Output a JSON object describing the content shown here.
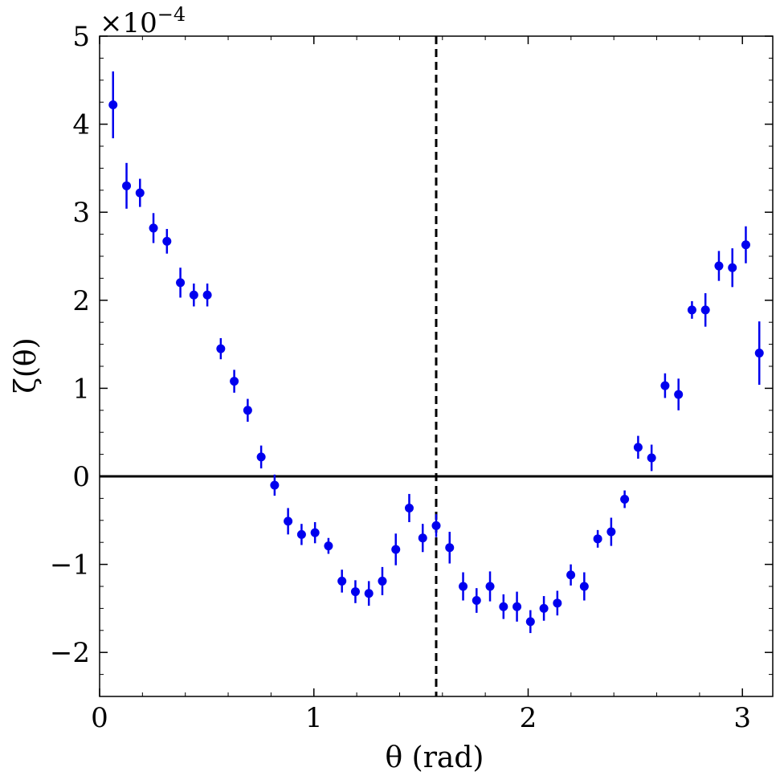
{
  "chart_data": {
    "type": "scatter",
    "xlabel": "θ (rad)",
    "ylabel": "ζ(θ)",
    "y_multiplier_label": "×10",
    "y_multiplier_exponent": "−4",
    "xlim": [
      0,
      3.1416
    ],
    "ylim": [
      -2.5,
      5.0
    ],
    "x_ticks": [
      0,
      1,
      2,
      3
    ],
    "x_tick_labels": [
      "0",
      "1",
      "2",
      "3"
    ],
    "y_ticks": [
      -2,
      -1,
      0,
      1,
      2,
      3,
      4,
      5
    ],
    "y_tick_labels": [
      "−2",
      "−1",
      "0",
      "1",
      "2",
      "3",
      "4",
      "5"
    ],
    "y_units": "×1e-4",
    "grid": false,
    "reference_lines": {
      "horizontal_y": 0,
      "vertical_x_dashed": 1.5708
    },
    "series": [
      {
        "color": "#0000ee",
        "x": [
          0.0628,
          0.1257,
          0.1885,
          0.2513,
          0.3142,
          0.377,
          0.4398,
          0.5027,
          0.5655,
          0.6283,
          0.6912,
          0.754,
          0.8168,
          0.8796,
          0.9425,
          1.0053,
          1.0681,
          1.131,
          1.1938,
          1.2566,
          1.3195,
          1.3823,
          1.4451,
          1.508,
          1.5708,
          1.6336,
          1.6965,
          1.7593,
          1.8221,
          1.885,
          1.9478,
          2.0106,
          2.0735,
          2.1363,
          2.1991,
          2.2619,
          2.3248,
          2.3876,
          2.4504,
          2.5133,
          2.5761,
          2.6389,
          2.7018,
          2.7646,
          2.8274,
          2.8903,
          2.9531,
          3.0159,
          3.0788
        ],
        "y": [
          4.22,
          3.3,
          3.22,
          2.82,
          2.67,
          2.2,
          2.06,
          2.06,
          1.45,
          1.08,
          0.75,
          0.22,
          -0.1,
          -0.51,
          -0.66,
          -0.64,
          -0.79,
          -1.19,
          -1.31,
          -1.33,
          -1.19,
          -0.83,
          -0.36,
          -0.7,
          -0.56,
          -0.81,
          -1.25,
          -1.41,
          -1.25,
          -1.48,
          -1.48,
          -1.65,
          -1.5,
          -1.44,
          -1.12,
          -1.25,
          -0.71,
          -0.63,
          -0.26,
          0.33,
          0.21,
          1.03,
          0.93,
          1.89,
          1.89,
          2.39,
          2.37,
          2.63,
          1.4
        ],
        "yerr": [
          0.38,
          0.26,
          0.16,
          0.17,
          0.14,
          0.17,
          0.13,
          0.13,
          0.12,
          0.13,
          0.13,
          0.13,
          0.12,
          0.15,
          0.12,
          0.12,
          0.09,
          0.13,
          0.13,
          0.14,
          0.16,
          0.18,
          0.16,
          0.16,
          0.13,
          0.18,
          0.16,
          0.14,
          0.17,
          0.14,
          0.17,
          0.13,
          0.14,
          0.14,
          0.12,
          0.16,
          0.1,
          0.16,
          0.1,
          0.13,
          0.15,
          0.14,
          0.18,
          0.1,
          0.19,
          0.17,
          0.22,
          0.21,
          0.36
        ]
      }
    ]
  }
}
